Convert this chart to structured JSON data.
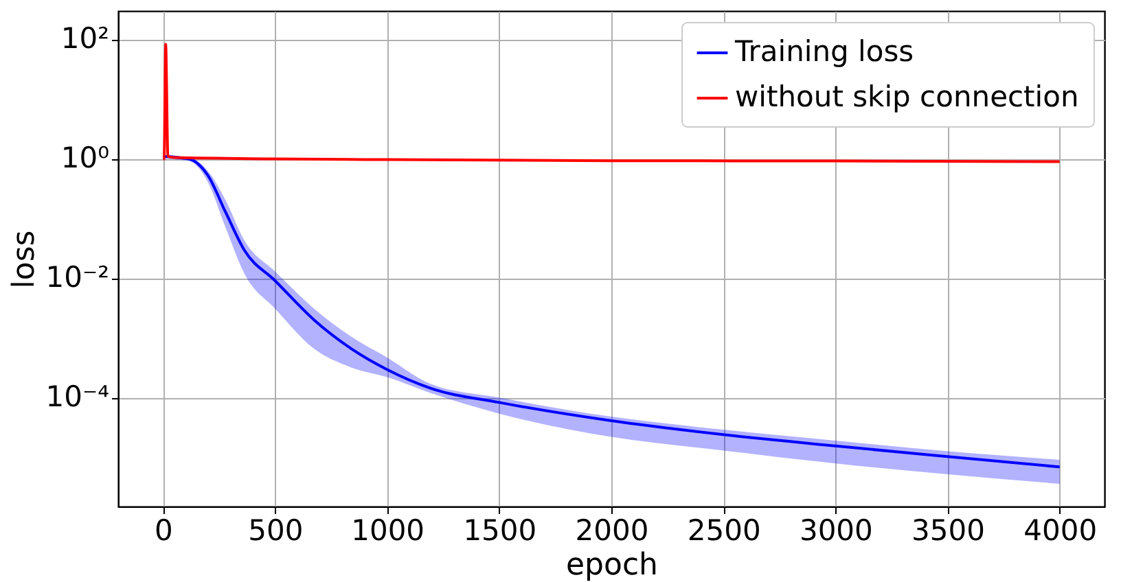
{
  "chart_data": {
    "type": "line",
    "xlabel": "epoch",
    "ylabel": "loss",
    "xlim": [
      -200,
      4200
    ],
    "xticks": [
      0,
      500,
      1000,
      1500,
      2000,
      2500,
      3000,
      3500,
      4000
    ],
    "ylim": [
      1.5e-06,
      300
    ],
    "yticks": [
      {
        "value": 0.0001,
        "label": "10⁻⁴"
      },
      {
        "value": 0.01,
        "label": "10⁻²"
      },
      {
        "value": 1,
        "label": "10⁰"
      },
      {
        "value": 100,
        "label": "10²"
      }
    ],
    "log": "y",
    "grid": true,
    "legend": "top right",
    "marker": "none",
    "line_style": "solid",
    "series": [
      {
        "name": "Training loss",
        "color": "#0000ff",
        "x": [
          0,
          114,
          200,
          280,
          363,
          500,
          674,
          840,
          1000,
          1193,
          1500,
          2000,
          2500,
          3000,
          3500,
          4000
        ],
        "values": [
          1.1,
          1.0,
          0.53,
          0.126,
          0.0295,
          0.0091,
          0.002,
          0.00066,
          0.000295,
          0.000144,
          8.3e-05,
          4.1e-05,
          2.4e-05,
          1.55e-05,
          1.03e-05,
          6.9e-06
        ],
        "upper": [
          1.1,
          1.05,
          0.63,
          0.2,
          0.043,
          0.013,
          0.0031,
          0.00105,
          0.00047,
          0.00017,
          0.0001,
          4.8e-05,
          2.9e-05,
          1.9e-05,
          1.26e-05,
          9.1e-06
        ],
        "lower": [
          1.0,
          0.93,
          0.41,
          0.07,
          0.012,
          0.0031,
          0.00066,
          0.00032,
          0.00022,
          0.00012,
          5.4e-05,
          2.2e-05,
          1.3e-05,
          7.9e-06,
          5.2e-06,
          3.6e-06
        ]
      },
      {
        "name": "without skip connection",
        "color": "#ff0000",
        "x": [
          0,
          5,
          12,
          22,
          50,
          500,
          1000,
          2000,
          3000,
          4000
        ],
        "values": [
          1.0,
          1.0,
          83,
          1.1,
          1.05,
          1.0,
          0.97,
          0.93,
          0.92,
          0.9
        ]
      }
    ]
  }
}
